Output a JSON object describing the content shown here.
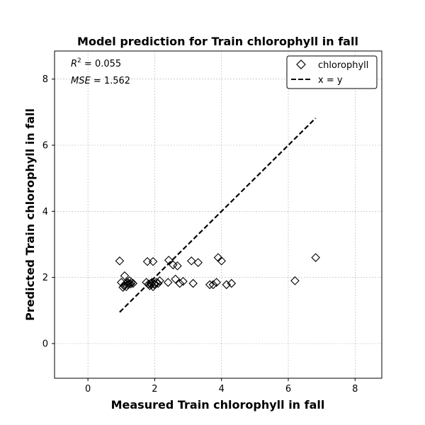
{
  "chart_data": {
    "type": "scatter",
    "title": "Model prediction for Train chlorophyll in fall",
    "xlabel": "Measured Train chlorophyll in fall",
    "ylabel": "Predicted Train chlorophyll in fall",
    "xlim": [
      -1.0,
      8.8
    ],
    "ylim": [
      -1.05,
      8.85
    ],
    "xticks": [
      0,
      2,
      4,
      6,
      8
    ],
    "yticks": [
      0,
      2,
      4,
      6,
      8
    ],
    "grid": true,
    "legend_position": "top-right",
    "annotations": {
      "r2_symbol": "R",
      "r2_exp": "2",
      "r2_value": " = 0.055",
      "mse_symbol": "MSE",
      "mse_value": " = 1.562"
    },
    "series": [
      {
        "name": "chlorophyll",
        "marker": "diamond",
        "color": "#000000",
        "points": [
          [
            0.95,
            2.5
          ],
          [
            1.0,
            1.85
          ],
          [
            1.05,
            1.7
          ],
          [
            1.08,
            1.75
          ],
          [
            1.1,
            2.05
          ],
          [
            1.12,
            1.8
          ],
          [
            1.15,
            1.72
          ],
          [
            1.18,
            1.85
          ],
          [
            1.2,
            1.78
          ],
          [
            1.22,
            1.82
          ],
          [
            1.25,
            1.9
          ],
          [
            1.28,
            1.8
          ],
          [
            1.3,
            1.85
          ],
          [
            1.35,
            1.82
          ],
          [
            1.75,
            1.85
          ],
          [
            1.78,
            2.48
          ],
          [
            1.82,
            1.8
          ],
          [
            1.85,
            1.75
          ],
          [
            1.88,
            1.82
          ],
          [
            1.9,
            1.78
          ],
          [
            1.92,
            1.85
          ],
          [
            1.95,
            1.72
          ],
          [
            1.95,
            2.48
          ],
          [
            1.98,
            1.8
          ],
          [
            2.0,
            1.78
          ],
          [
            2.05,
            1.85
          ],
          [
            2.1,
            1.82
          ],
          [
            2.15,
            1.9
          ],
          [
            2.4,
            1.85
          ],
          [
            2.42,
            2.52
          ],
          [
            2.55,
            2.38
          ],
          [
            2.62,
            1.95
          ],
          [
            2.68,
            2.35
          ],
          [
            2.75,
            1.82
          ],
          [
            2.85,
            1.88
          ],
          [
            3.1,
            2.5
          ],
          [
            3.15,
            1.82
          ],
          [
            3.3,
            2.45
          ],
          [
            3.65,
            1.78
          ],
          [
            3.75,
            1.78
          ],
          [
            3.85,
            1.85
          ],
          [
            3.9,
            2.6
          ],
          [
            4.0,
            2.5
          ],
          [
            4.15,
            1.78
          ],
          [
            4.3,
            1.82
          ],
          [
            6.2,
            1.9
          ],
          [
            6.82,
            2.6
          ]
        ]
      },
      {
        "name": "x = y",
        "style": "dashed",
        "color": "#000000",
        "x": [
          0.95,
          6.82
        ],
        "y": [
          0.95,
          6.82
        ]
      }
    ]
  }
}
